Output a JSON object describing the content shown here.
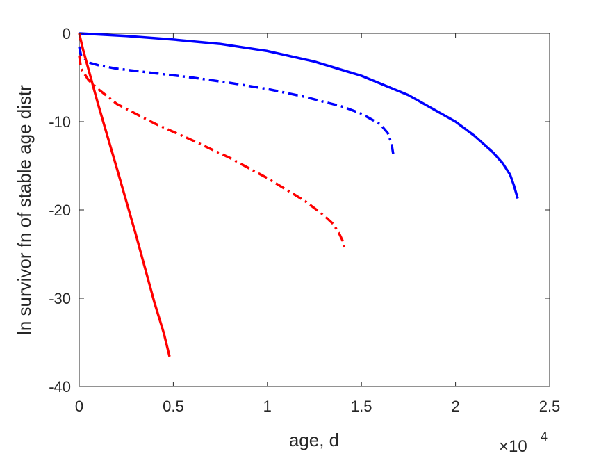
{
  "chart_data": {
    "type": "line",
    "title": "",
    "xlabel": "age, d",
    "ylabel": "ln survivor fn of stable age distr",
    "x_multiplier_label": {
      "base": "×10",
      "exponent": "4"
    },
    "xlim": [
      0,
      2.5
    ],
    "ylim": [
      -40,
      0
    ],
    "xticks": [
      "0",
      "0.5",
      "1",
      "1.5",
      "2",
      "2.5"
    ],
    "yticks": [
      "0",
      "-10",
      "-20",
      "-30",
      "-40"
    ],
    "grid": false,
    "legend": "none",
    "series": [
      {
        "color": "#0000ff",
        "style": "solid",
        "x": [
          0,
          0.25,
          0.5,
          0.75,
          1.0,
          1.25,
          1.5,
          1.75,
          2.0,
          2.1,
          2.2,
          2.25,
          2.29,
          2.31,
          2.33
        ],
        "y": [
          0,
          -0.3,
          -0.7,
          -1.2,
          -2.0,
          -3.2,
          -4.8,
          -7.0,
          -10.0,
          -11.6,
          -13.5,
          -14.7,
          -16.0,
          -17.2,
          -18.7
        ]
      },
      {
        "color": "#0000ff",
        "style": "dashdot",
        "x": [
          0,
          0.01,
          0.05,
          0.1,
          0.2,
          0.4,
          0.6,
          0.8,
          1.0,
          1.2,
          1.4,
          1.5,
          1.6,
          1.64,
          1.66,
          1.67
        ],
        "y": [
          -1.5,
          -2.5,
          -3.3,
          -3.6,
          -4.0,
          -4.5,
          -5.0,
          -5.6,
          -6.3,
          -7.2,
          -8.3,
          -9.1,
          -10.3,
          -11.3,
          -12.5,
          -13.8
        ]
      },
      {
        "color": "#ff0000",
        "style": "dashdot",
        "x": [
          0,
          0.01,
          0.05,
          0.1,
          0.2,
          0.4,
          0.6,
          0.8,
          1.0,
          1.2,
          1.3,
          1.35,
          1.38,
          1.4,
          1.41
        ],
        "y": [
          -2.5,
          -4.0,
          -5.3,
          -6.3,
          -8.0,
          -10.2,
          -12.1,
          -14.1,
          -16.4,
          -19.0,
          -20.6,
          -21.6,
          -22.6,
          -23.5,
          -24.4
        ]
      },
      {
        "color": "#ff0000",
        "style": "solid",
        "x": [
          0,
          0.02,
          0.1,
          0.2,
          0.3,
          0.4,
          0.45,
          0.48
        ],
        "y": [
          0,
          -1.8,
          -8.0,
          -15.3,
          -22.7,
          -30.5,
          -34.0,
          -36.6
        ]
      }
    ]
  }
}
